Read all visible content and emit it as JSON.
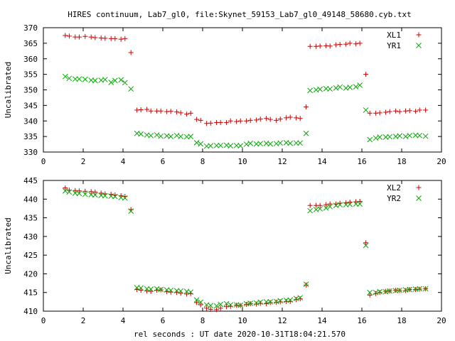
{
  "title": "HIRES continuum, Lab7_gl0, file:Skynet_59153_Lab7_gl0_49148_58680.cyb.txt",
  "xlabel": "rel seconds : UT date 2020-10-31T18:04:21.570",
  "chart_data": [
    {
      "type": "scatter",
      "ylabel": "Uncalibrated",
      "xlim": [
        0,
        20
      ],
      "ylim": [
        330,
        370
      ],
      "xticks": [
        0,
        2,
        4,
        6,
        8,
        10,
        12,
        14,
        16,
        18,
        20
      ],
      "yticks": [
        330,
        335,
        340,
        345,
        350,
        355,
        360,
        365,
        370
      ],
      "grid": false,
      "legend_position": "top-right",
      "series": [
        {
          "name": "XL1",
          "marker": "plus",
          "color": "#cc0000",
          "x": [
            1.1,
            1.3,
            1.6,
            1.8,
            2.1,
            2.4,
            2.6,
            2.9,
            3.1,
            3.4,
            3.6,
            3.9,
            4.1,
            4.4,
            4.7,
            4.9,
            5.2,
            5.4,
            5.7,
            5.9,
            6.2,
            6.4,
            6.7,
            6.9,
            7.2,
            7.4,
            7.7,
            7.9,
            8.2,
            8.4,
            8.7,
            8.9,
            9.2,
            9.4,
            9.7,
            9.9,
            10.2,
            10.4,
            10.7,
            10.9,
            11.2,
            11.4,
            11.7,
            11.9,
            12.2,
            12.4,
            12.7,
            12.9,
            13.2,
            13.4,
            13.7,
            13.9,
            14.2,
            14.4,
            14.7,
            14.9,
            15.2,
            15.4,
            15.7,
            15.9,
            16.2,
            16.4,
            16.7,
            16.9,
            17.2,
            17.4,
            17.7,
            17.9,
            18.2,
            18.4,
            18.7,
            18.9,
            19.2
          ],
          "y": [
            367.5,
            367.3,
            367.0,
            367.0,
            367.2,
            367.0,
            366.8,
            366.7,
            366.6,
            366.5,
            366.5,
            366.3,
            366.5,
            362.0,
            343.5,
            343.6,
            343.7,
            343.2,
            343.2,
            343.2,
            343.0,
            343.1,
            342.9,
            342.6,
            342.2,
            342.5,
            340.5,
            340.2,
            339.2,
            339.3,
            339.5,
            339.5,
            339.5,
            340.0,
            339.8,
            340.0,
            340.0,
            340.2,
            340.3,
            340.6,
            340.8,
            340.5,
            340.2,
            340.6,
            341.0,
            341.2,
            341.0,
            340.8,
            344.5,
            364.0,
            364.0,
            364.1,
            364.2,
            364.1,
            364.5,
            364.6,
            364.7,
            365.0,
            364.8,
            365.0,
            355.0,
            342.5,
            342.5,
            342.6,
            342.8,
            343.0,
            343.2,
            343.0,
            343.2,
            343.3,
            343.1,
            343.5,
            343.5
          ]
        },
        {
          "name": "YR1",
          "marker": "cross",
          "color": "#00aa00",
          "x": [
            1.1,
            1.3,
            1.6,
            1.8,
            2.1,
            2.4,
            2.6,
            2.9,
            3.1,
            3.4,
            3.6,
            3.9,
            4.1,
            4.4,
            4.7,
            4.9,
            5.2,
            5.4,
            5.7,
            5.9,
            6.2,
            6.4,
            6.7,
            6.9,
            7.2,
            7.4,
            7.7,
            7.9,
            8.2,
            8.4,
            8.7,
            8.9,
            9.2,
            9.4,
            9.7,
            9.9,
            10.2,
            10.4,
            10.7,
            10.9,
            11.2,
            11.4,
            11.7,
            11.9,
            12.2,
            12.4,
            12.7,
            12.9,
            13.2,
            13.4,
            13.7,
            13.9,
            14.2,
            14.4,
            14.7,
            14.9,
            15.2,
            15.4,
            15.7,
            15.9,
            16.2,
            16.4,
            16.7,
            16.9,
            17.2,
            17.4,
            17.7,
            17.9,
            18.2,
            18.4,
            18.7,
            18.9,
            19.2
          ],
          "y": [
            354.3,
            353.7,
            353.5,
            353.5,
            353.4,
            353.1,
            353.0,
            353.1,
            353.3,
            352.4,
            353.0,
            353.2,
            352.3,
            350.3,
            336.0,
            335.8,
            335.5,
            335.3,
            335.5,
            335.1,
            335.2,
            335.0,
            335.3,
            335.0,
            334.9,
            335.0,
            333.0,
            332.6,
            331.9,
            332.0,
            332.1,
            332.1,
            332.2,
            332.0,
            332.1,
            332.0,
            332.5,
            332.8,
            332.6,
            332.7,
            332.8,
            332.6,
            332.7,
            332.9,
            333.0,
            332.8,
            332.9,
            332.9,
            336.0,
            349.8,
            350.0,
            350.2,
            350.4,
            350.3,
            350.6,
            350.9,
            350.6,
            350.8,
            351.0,
            351.5,
            343.5,
            334.0,
            334.5,
            334.8,
            334.8,
            334.9,
            335.0,
            335.2,
            335.0,
            335.3,
            335.4,
            335.3,
            335.1
          ]
        }
      ]
    },
    {
      "type": "scatter",
      "ylabel": "Uncalibrated",
      "xlim": [
        0,
        20
      ],
      "ylim": [
        410,
        445
      ],
      "xticks": [
        0,
        2,
        4,
        6,
        8,
        10,
        12,
        14,
        16,
        18,
        20
      ],
      "yticks": [
        410,
        415,
        420,
        425,
        430,
        435,
        440,
        445
      ],
      "grid": false,
      "legend_position": "top-right",
      "series": [
        {
          "name": "XL2",
          "marker": "plus",
          "color": "#cc0000",
          "x": [
            1.1,
            1.3,
            1.6,
            1.8,
            2.1,
            2.4,
            2.6,
            2.9,
            3.1,
            3.4,
            3.6,
            3.9,
            4.1,
            4.4,
            4.7,
            4.9,
            5.2,
            5.4,
            5.7,
            5.9,
            6.2,
            6.4,
            6.7,
            6.9,
            7.2,
            7.4,
            7.7,
            7.9,
            8.2,
            8.4,
            8.7,
            8.9,
            9.2,
            9.4,
            9.7,
            9.9,
            10.2,
            10.4,
            10.7,
            10.9,
            11.2,
            11.4,
            11.7,
            11.9,
            12.2,
            12.4,
            12.7,
            12.9,
            13.2,
            13.4,
            13.7,
            13.9,
            14.2,
            14.4,
            14.7,
            14.9,
            15.2,
            15.4,
            15.7,
            15.9,
            16.2,
            16.4,
            16.7,
            16.9,
            17.2,
            17.4,
            17.7,
            17.9,
            18.2,
            18.4,
            18.7,
            18.9,
            19.2
          ],
          "y": [
            443.0,
            442.4,
            442.3,
            442.2,
            442.1,
            442.0,
            441.9,
            441.6,
            441.4,
            441.3,
            441.1,
            440.9,
            440.7,
            437.2,
            415.8,
            415.6,
            415.4,
            415.3,
            415.6,
            415.7,
            415.2,
            415.1,
            415.0,
            414.8,
            414.6,
            414.7,
            412.3,
            411.7,
            410.8,
            410.5,
            410.4,
            410.8,
            411.2,
            411.3,
            411.6,
            411.5,
            411.8,
            412.0,
            411.9,
            412.1,
            412.0,
            412.3,
            412.4,
            412.5,
            412.6,
            412.6,
            413.1,
            413.3,
            417.0,
            438.3,
            438.3,
            438.3,
            438.5,
            438.7,
            438.7,
            438.9,
            439.0,
            439.2,
            439.3,
            439.4,
            428.3,
            414.3,
            414.7,
            415.0,
            415.3,
            415.4,
            415.6,
            415.5,
            415.5,
            415.8,
            415.8,
            415.9,
            416.0
          ]
        },
        {
          "name": "YR2",
          "marker": "cross",
          "color": "#00aa00",
          "x": [
            1.1,
            1.3,
            1.6,
            1.8,
            2.1,
            2.4,
            2.6,
            2.9,
            3.1,
            3.4,
            3.6,
            3.9,
            4.1,
            4.4,
            4.7,
            4.9,
            5.2,
            5.4,
            5.7,
            5.9,
            6.2,
            6.4,
            6.7,
            6.9,
            7.2,
            7.4,
            7.7,
            7.9,
            8.2,
            8.4,
            8.7,
            8.9,
            9.2,
            9.4,
            9.7,
            9.9,
            10.2,
            10.4,
            10.7,
            10.9,
            11.2,
            11.4,
            11.7,
            11.9,
            12.2,
            12.4,
            12.7,
            12.9,
            13.2,
            13.4,
            13.7,
            13.9,
            14.2,
            14.4,
            14.7,
            14.9,
            15.2,
            15.4,
            15.7,
            15.9,
            16.2,
            16.4,
            16.7,
            16.9,
            17.2,
            17.4,
            17.7,
            17.9,
            18.2,
            18.4,
            18.7,
            18.9,
            19.2
          ],
          "y": [
            442.2,
            441.9,
            441.6,
            441.5,
            441.3,
            441.2,
            441.1,
            441.0,
            440.9,
            440.8,
            440.7,
            440.4,
            440.3,
            436.8,
            416.3,
            416.2,
            416.0,
            415.9,
            416.0,
            415.8,
            415.7,
            415.6,
            415.5,
            415.4,
            415.3,
            415.1,
            413.0,
            412.4,
            411.7,
            411.5,
            411.4,
            411.8,
            412.0,
            411.7,
            411.7,
            411.6,
            412.0,
            412.1,
            412.2,
            412.4,
            412.5,
            412.5,
            412.6,
            412.8,
            412.9,
            413.0,
            413.4,
            413.6,
            417.2,
            436.9,
            437.2,
            437.4,
            437.6,
            438.0,
            438.3,
            438.5,
            438.5,
            438.6,
            438.7,
            438.7,
            427.6,
            415.0,
            415.0,
            415.2,
            415.2,
            415.4,
            415.5,
            415.6,
            415.7,
            415.8,
            415.9,
            416.0,
            416.0
          ]
        }
      ]
    }
  ]
}
